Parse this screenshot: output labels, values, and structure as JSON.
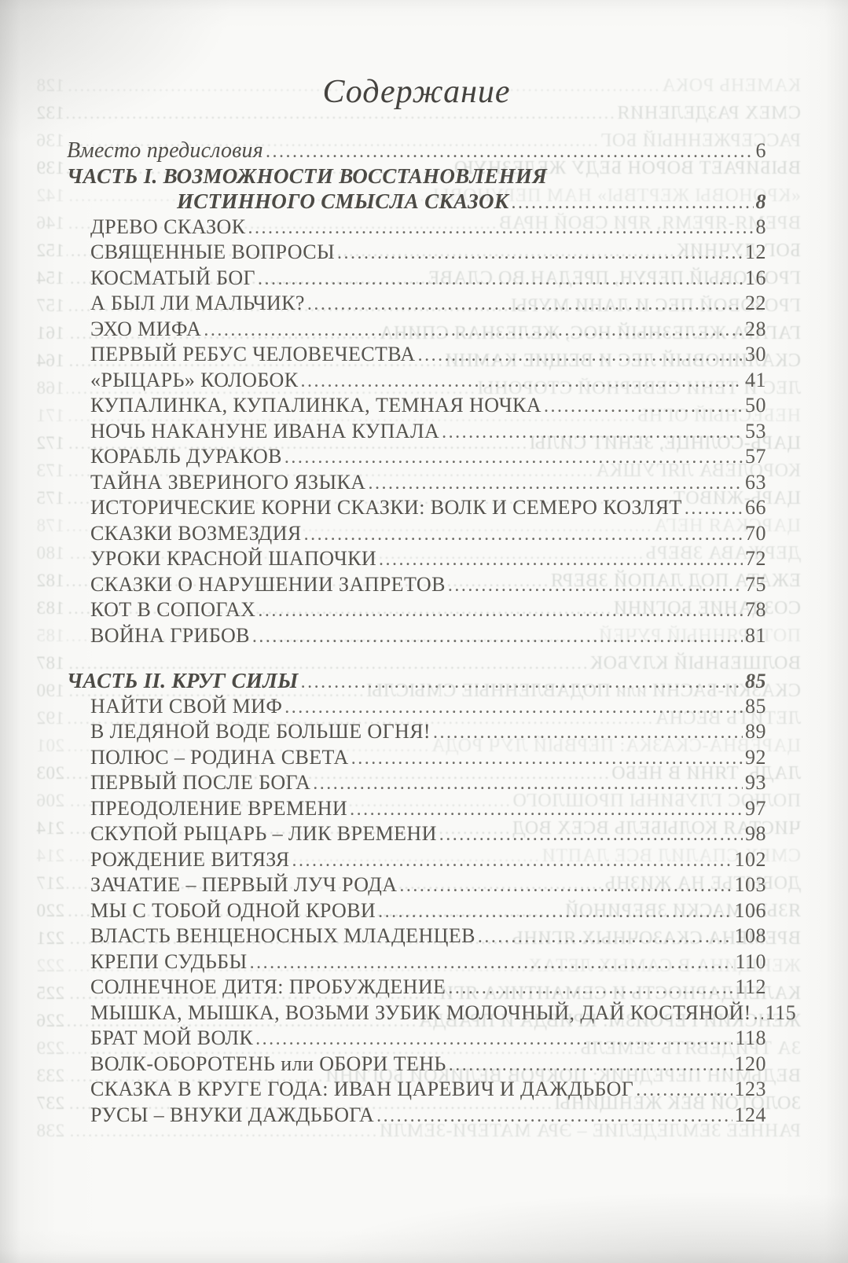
{
  "toc": {
    "title": "Содержание",
    "preface": {
      "label": "Вместо предисловия",
      "page": "6"
    },
    "part1": {
      "heading_line1": "ЧАСТЬ I. ВОЗМОЖНОСТИ ВОССТАНОВЛЕНИЯ",
      "heading_line2": "ИСТИННОГО СМЫСЛА СКАЗОК",
      "page": "8",
      "entries": [
        {
          "label": "ДРЕВО СКАЗОК",
          "page": "8"
        },
        {
          "label": "СВЯЩЕННЫЕ ВОПРОСЫ",
          "page": "12"
        },
        {
          "label": "КОСМАТЫЙ БОГ",
          "page": "16"
        },
        {
          "label": "А БЫЛ ЛИ МАЛЬЧИК?",
          "page": "22"
        },
        {
          "label": "ЭХО МИФА",
          "page": "28"
        },
        {
          "label": "ПЕРВЫЙ РЕБУС ЧЕЛОВЕЧЕСТВА",
          "page": "30"
        },
        {
          "label": "«РЫЦАРЬ» КОЛОБОК",
          "page": "41"
        },
        {
          "label": "КУПАЛИНКА, КУПАЛИНКА, ТЕМНАЯ НОЧКА",
          "page": "50"
        },
        {
          "label": "НОЧЬ НАКАНУНЕ ИВАНА КУПАЛА",
          "page": "53"
        },
        {
          "label": "КОРАБЛЬ ДУРАКОВ",
          "page": "57"
        },
        {
          "label": "ТАЙНА ЗВЕРИНОГО ЯЗЫКА",
          "page": "63"
        },
        {
          "label": "ИСТОРИЧЕСКИЕ КОРНИ СКАЗКИ: ВОЛК И СЕМЕРО КОЗЛЯТ",
          "page": "66"
        },
        {
          "label": "СКАЗКИ ВОЗМЕЗДИЯ",
          "page": "70"
        },
        {
          "label": "УРОКИ КРАСНОЙ ШАПОЧКИ",
          "page": "72"
        },
        {
          "label": "СКАЗКИ О НАРУШЕНИИ ЗАПРЕТОВ",
          "page": "75"
        },
        {
          "label": "КОТ В СОПОГАХ",
          "page": "78"
        },
        {
          "label": "ВОЙНА ГРИБОВ",
          "page": "81"
        }
      ]
    },
    "part2": {
      "heading": "ЧАСТЬ II. КРУГ СИЛЫ",
      "page": "85",
      "entries": [
        {
          "label": "НАЙТИ СВОЙ МИФ",
          "page": "85"
        },
        {
          "label": "В ЛЕДЯНОЙ ВОДЕ БОЛЬШЕ ОГНЯ!",
          "page": "89"
        },
        {
          "label": "ПОЛЮС – РОДИНА СВЕТА",
          "page": "92"
        },
        {
          "label": "ПЕРВЫЙ ПОСЛЕ БОГА",
          "page": "93"
        },
        {
          "label": "ПРЕОДОЛЕНИЕ ВРЕМЕНИ",
          "page": "97"
        },
        {
          "label": "СКУПОЙ РЫЦАРЬ – ЛИК ВРЕМЕНИ",
          "page": "98"
        },
        {
          "label": "РОЖДЕНИЕ ВИТЯЗЯ",
          "page": "102"
        },
        {
          "label": "ЗАЧАТИЕ – ПЕРВЫЙ ЛУЧ РОДА",
          "page": "103"
        },
        {
          "label": "МЫ С ТОБОЙ ОДНОЙ КРОВИ",
          "page": "106"
        },
        {
          "label": "ВЛАСТЬ ВЕНЦЕНОСНЫХ МЛАДЕНЦЕВ",
          "page": "108"
        },
        {
          "label": "КРЕПИ СУДЬБЫ",
          "page": "110"
        },
        {
          "label": "СОЛНЕЧНОЕ ДИТЯ: ПРОБУЖДЕНИЕ",
          "page": "112"
        },
        {
          "label": "МЫШКА, МЫШКА, ВОЗЬМИ ЗУБИК МОЛОЧНЫЙ, ДАЙ КОСТЯНОЙ!",
          "page": "115"
        },
        {
          "label": "БРАТ МОЙ ВОЛК",
          "page": "118"
        },
        {
          "label": "ВОЛК-ОБОРОТЕНЬ или ОБОРИ ТЕНЬ",
          "page": "120"
        },
        {
          "label": "СКАЗКА В КРУГЕ ГОДА: ИВАН ЦАРЕВИЧ И ДАЖДЬБОГ",
          "page": "123"
        },
        {
          "label": "РУСЫ – ВНУКИ ДАЖДЬБОГА",
          "page": "124"
        }
      ]
    }
  },
  "bleedthrough_mirrored_lines": [
    {
      "text": "КАМЕНЬ РОКА",
      "page": "128"
    },
    {
      "text": "СМЕХ РАЗДЕЛЕНИЯ",
      "page": "132"
    },
    {
      "text": "РАССЕРЖЕННЫЙ БОГ",
      "page": "136"
    },
    {
      "text": "ВЫБИРАЕТ ВОРОН БЕДУ ЖЕЛЕЗНУЮ",
      "page": "139"
    },
    {
      "text": "«КРОНОВЫ ЖЕРТВЫ» НАМ ПЕРУНОВЫ",
      "page": "142"
    },
    {
      "text": "ВРЕМЯ-ЯРЕМЯ, ЯРИ СВОЙ НРАВ",
      "page": "146"
    },
    {
      "text": "БОГ-ЛУЧНИК",
      "page": "152"
    },
    {
      "text": "ГРОМОВЫЙ ПЕРУН, ПРЕДАН ВО СЛАВЕ",
      "page": "154"
    },
    {
      "text": "ГРОЗОВОЙ ПЕС И ЛАНИ МУРЫ",
      "page": "157"
    },
    {
      "text": "ГАГАРА ЖЕЛЕЗНЫЙ НОС, ЖЕЛЕЗНАЯ СПИНА",
      "page": "161"
    },
    {
      "text": "СКАЛИНОВЫЙ ЛЕС И ВЕЩИЕ КАМНИ",
      "page": "164"
    },
    {
      "text": "ЛЕС И ТЕНИ СЕВЕРНОЙ СТОРОНЫ",
      "page": "168"
    },
    {
      "text": "НЕБЕСНЫЙ ОГНЬ",
      "page": "171"
    },
    {
      "text": "ЦАРЬ-СОЛНЦЕ, ЗЕНИТ СИЛЫ",
      "page": "172"
    },
    {
      "text": "КОРОЛЕВА ЛЯГУШКА",
      "page": "173"
    },
    {
      "text": "ЦАРЬ-ЖИВОТ",
      "page": "175"
    },
    {
      "text": "ЦАРСКАЯ НЕГА",
      "page": "178"
    },
    {
      "text": "ДЕРЖАВА ЗВЕРЬ",
      "page": "180"
    },
    {
      "text": "ЕЖАТА ПОД ЛАПОЙ ЗВЕРЯ",
      "page": "182"
    },
    {
      "text": "СОЗДАНИЕ БОГИНИ",
      "page": "183"
    },
    {
      "text": "ПОТЕРЯННЫЙ РУЧЕЙ",
      "page": "185"
    },
    {
      "text": "ВОЛШЕБНЫЙ КЛУБОК",
      "page": "187"
    },
    {
      "text": "СКАЗКИ-БАСНИ или ПОДАВЛЕННЫЕ СМЫСЛЫ",
      "page": "190"
    },
    {
      "text": "ЛЕТИТЬ ВЕСНА",
      "page": "192"
    },
    {
      "text": "ЦАРЕВНА-СКАЗКА: ПЕРВЫЙ ЛУЧ РОДА",
      "page": "201"
    },
    {
      "text": "ЛАДЬ, ТЯНИ В НЕБО",
      "page": "203"
    },
    {
      "text": "ПОЛЮС ГЛУБИНЫ ПРОШЛОГО",
      "page": "206"
    },
    {
      "text": "ЧИСТАЯ КОЛЫБЕЛЬ ВСЕХ ВОД",
      "page": "214"
    },
    {
      "text": "СМЕХ СПАЛИЛ ВСЕ ЛАПТИ",
      "page": "214"
    },
    {
      "text": "ДОБЫТЬЕ НА ЖИЗНЬ",
      "page": "217"
    },
    {
      "text": "ЯЗЫК МАСКИ ЗВЕРИНОЙ",
      "page": "220"
    },
    {
      "text": "ВРЕМЕНА СКАЗОЧНЫХ ЯГИНЬ",
      "page": "221"
    },
    {
      "text": "ЖЕНЩИНА В САМЫХ ЛЕТАХ",
      "page": "222"
    },
    {
      "text": "КАЛЕНДАРНОСТЬ И СЕМАНТИКА ЯГИ",
      "page": "225"
    },
    {
      "text": "ЖЕНСКИЙ ГЕРОИЗМ: КРИВДА И ПРАВДА",
      "page": "226"
    },
    {
      "text": "ЗА ТРИДЕВЯТЬ ЗЕМЕЛЬ",
      "page": "229"
    },
    {
      "text": "ВЕДЬМИН ПЕРЕДНИК: ПОКРОВ ВЕЛИКОЙ БОГИНИ",
      "page": "233"
    },
    {
      "text": "ЗОЛОТОЙ ВЕК ЖЕНЩИНЫ",
      "page": "237"
    },
    {
      "text": "РАННЕЕ ЗЕМЛЕДЕЛИЕ – ЭРА МАТЕРИ-ЗЕМЛИ",
      "page": "238"
    }
  ],
  "colors": {
    "paper": "#f9f9f7",
    "text": "#55534e",
    "title": "#45433f",
    "leader_dots": "#6e6c66",
    "bleedthrough": "#8d958f"
  }
}
